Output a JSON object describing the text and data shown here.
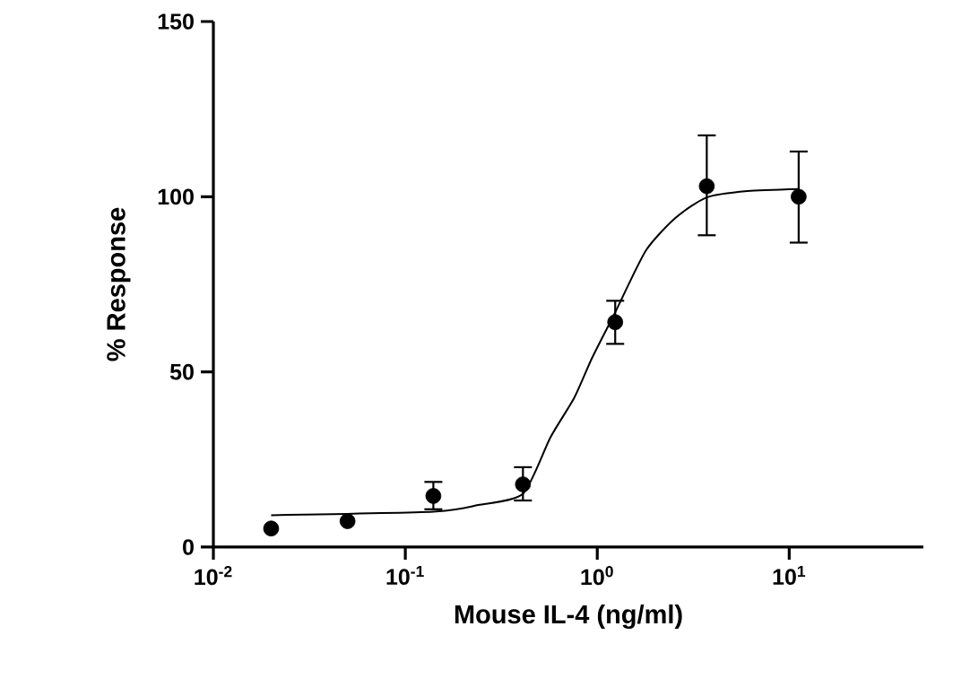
{
  "chart_data": {
    "type": "scatter",
    "xlabel": "Mouse IL-4 (ng/ml)",
    "ylabel": "% Response",
    "log": "x",
    "xlim": [
      0.01,
      50
    ],
    "xticks": [
      {
        "value": 0.01,
        "label": "10$^{-2}$"
      },
      {
        "value": 0.1,
        "label": "10$^{-1}$"
      },
      {
        "value": 1,
        "label": "10$^{0}$"
      },
      {
        "value": 10,
        "label": "10$^{1}$"
      }
    ],
    "ylim": [
      0,
      150
    ],
    "yticks": [
      0,
      50,
      100,
      150
    ],
    "series": [
      {
        "color": "#000000",
        "marker": "circle",
        "x": [
          0.02,
          0.05,
          0.14,
          0.41,
          1.24,
          3.72,
          11.2
        ],
        "values": [
          5.3,
          7.4,
          14.6,
          17.9,
          64.2,
          103,
          100
        ],
        "errors": [
          null,
          null,
          [
            10.8,
            18.6
          ],
          [
            13.3,
            22.8
          ],
          [
            58,
            70.3
          ],
          [
            89,
            117.5
          ],
          [
            86.9,
            112.9
          ]
        ]
      },
      {
        "type": "line",
        "color": "#000000",
        "marker": "none",
        "line_style": "solid",
        "x": [
          0.02,
          0.14,
          0.24,
          0.41,
          0.57,
          0.76,
          0.94,
          1.24,
          1.79,
          2.56,
          3.72,
          6.05,
          11.2
        ],
        "values": [
          9.1,
          10.1,
          12,
          15.2,
          31.3,
          42.7,
          54,
          67,
          84.6,
          94,
          99.8,
          101.6,
          102.2
        ]
      }
    ]
  }
}
